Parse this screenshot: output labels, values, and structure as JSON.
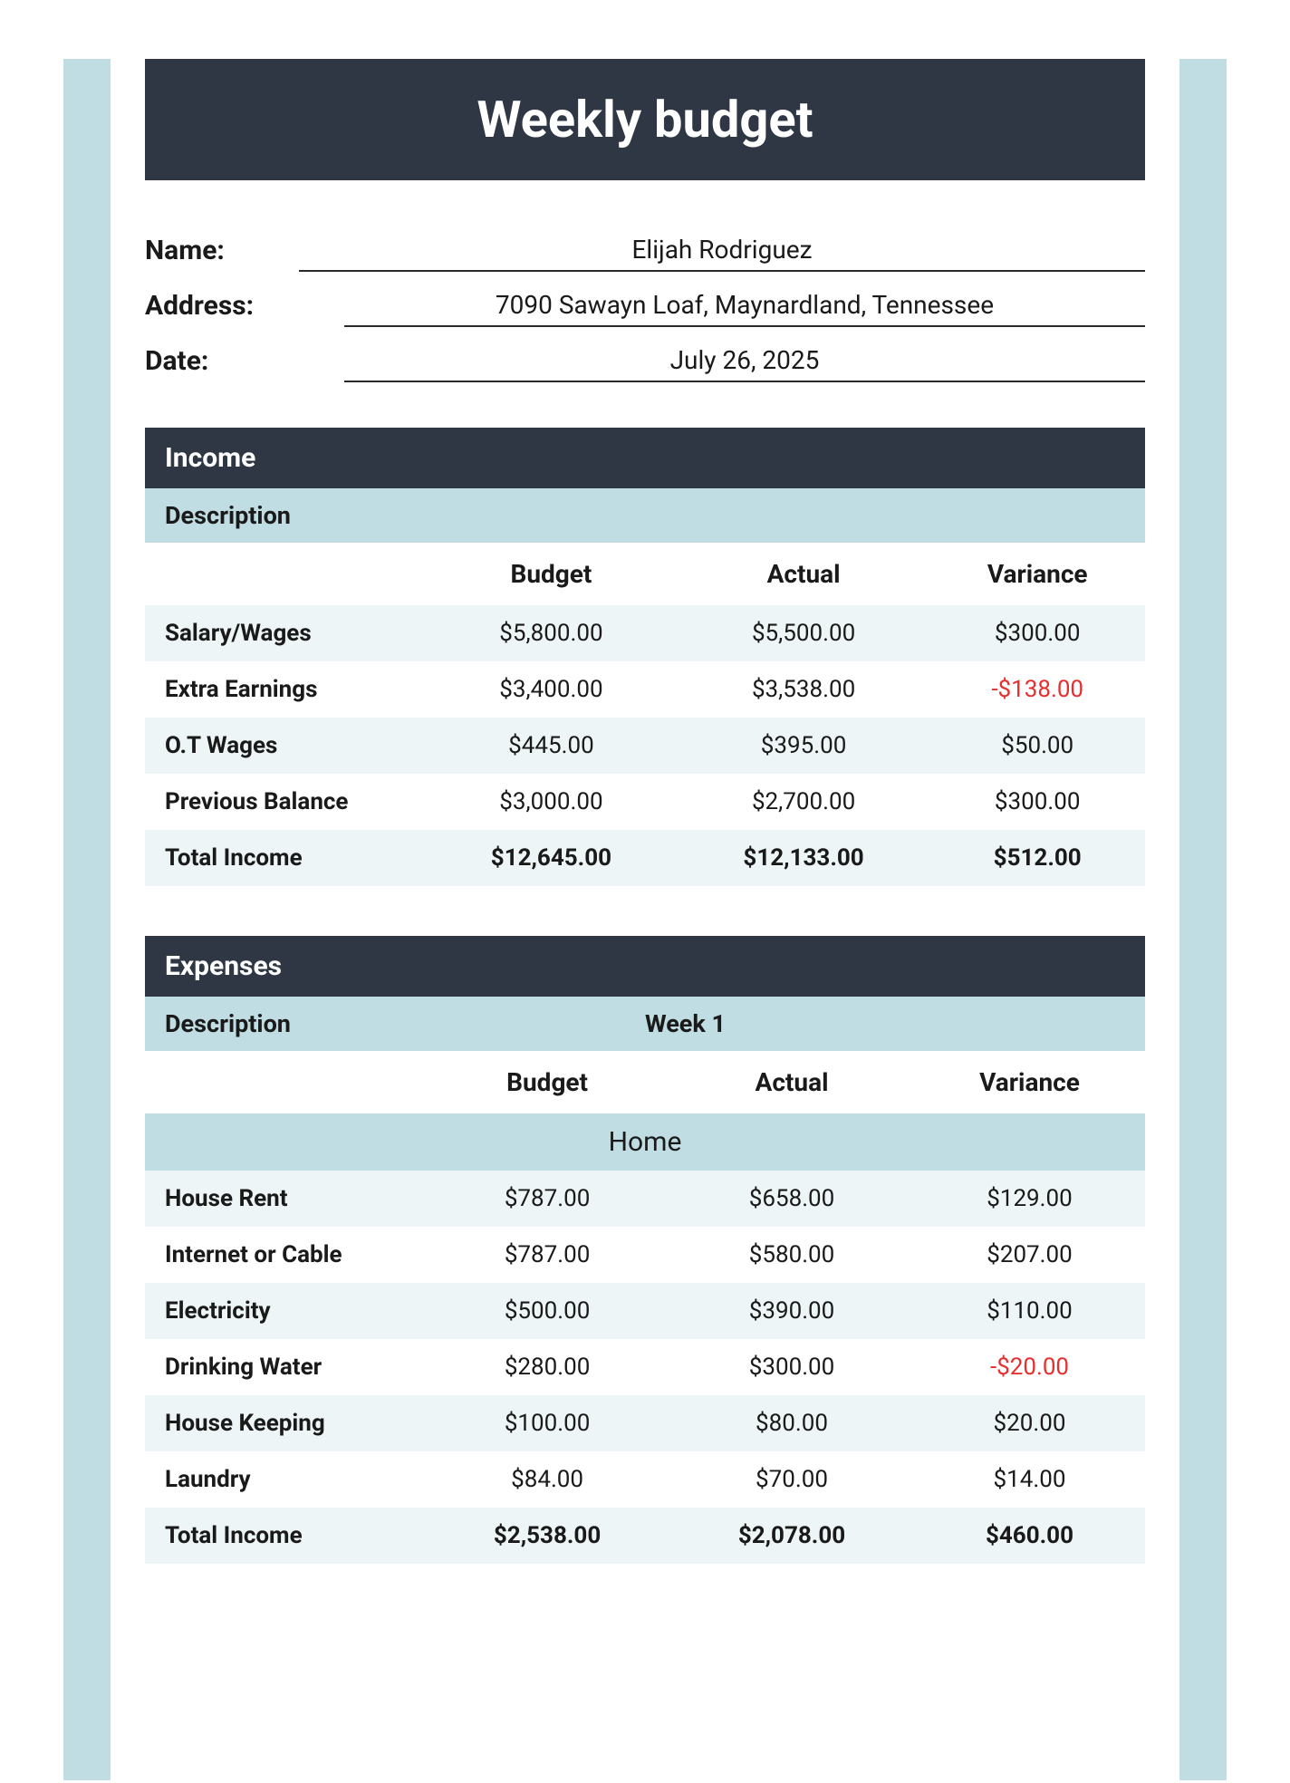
{
  "title": "Weekly budget",
  "colors": {
    "header_bg": "#2f3745",
    "section_bg": "#bfdde2",
    "row_alt": "#edf5f6",
    "negative": "#e63030",
    "text": "#1a1a1a"
  },
  "info": {
    "name_label": "Name:",
    "name_value": "Elijah Rodriguez",
    "address_label": "Address:",
    "address_value": "7090 Sawayn Loaf, Maynardland, Tennessee",
    "date_label": "Date:",
    "date_value": "July 26, 2025"
  },
  "income": {
    "section_title": "Income",
    "description_label": "Description",
    "columns": {
      "budget": "Budget",
      "actual": "Actual",
      "variance": "Variance"
    },
    "rows": [
      {
        "label": "Salary/Wages",
        "budget": "$5,800.00",
        "actual": "$5,500.00",
        "variance": "$300.00",
        "neg": false
      },
      {
        "label": "Extra Earnings",
        "budget": "$3,400.00",
        "actual": "$3,538.00",
        "variance": "-$138.00",
        "neg": true
      },
      {
        "label": "O.T Wages",
        "budget": "$445.00",
        "actual": "$395.00",
        "variance": "$50.00",
        "neg": false
      },
      {
        "label": "Previous Balance",
        "budget": "$3,000.00",
        "actual": "$2,700.00",
        "variance": "$300.00",
        "neg": false
      }
    ],
    "total": {
      "label": "Total Income",
      "budget": "$12,645.00",
      "actual": "$12,133.00",
      "variance": "$512.00"
    }
  },
  "expenses": {
    "section_title": "Expenses",
    "description_label": "Description",
    "week_label": "Week 1",
    "columns": {
      "budget": "Budget",
      "actual": "Actual",
      "variance": "Variance"
    },
    "category": "Home",
    "rows": [
      {
        "label": "House Rent",
        "budget": "$787.00",
        "actual": "$658.00",
        "variance": "$129.00",
        "neg": false
      },
      {
        "label": "Internet or Cable",
        "budget": "$787.00",
        "actual": "$580.00",
        "variance": "$207.00",
        "neg": false
      },
      {
        "label": "Electricity",
        "budget": "$500.00",
        "actual": "$390.00",
        "variance": "$110.00",
        "neg": false
      },
      {
        "label": "Drinking Water",
        "budget": "$280.00",
        "actual": "$300.00",
        "variance": "-$20.00",
        "neg": true
      },
      {
        "label": "House Keeping",
        "budget": "$100.00",
        "actual": "$80.00",
        "variance": "$20.00",
        "neg": false
      },
      {
        "label": "Laundry",
        "budget": "$84.00",
        "actual": "$70.00",
        "variance": "$14.00",
        "neg": false
      }
    ],
    "total": {
      "label": "Total Income",
      "budget": "$2,538.00",
      "actual": "$2,078.00",
      "variance": "$460.00"
    }
  }
}
